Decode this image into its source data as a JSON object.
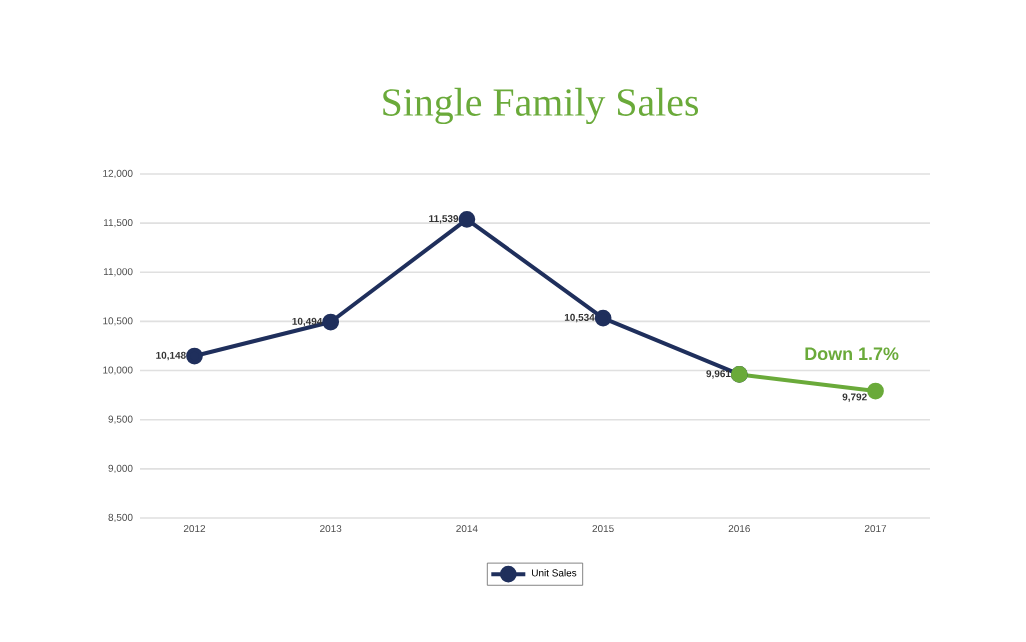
{
  "chart_data": {
    "type": "line",
    "title": "Single Family Sales",
    "categories": [
      "2012",
      "2013",
      "2014",
      "2015",
      "2016",
      "2017"
    ],
    "series": [
      {
        "name": "Unit Sales",
        "color": "#1f2f5c",
        "values": [
          10148,
          10494,
          11539,
          10534,
          9961,
          null
        ],
        "value_labels": [
          "10,148",
          "10,494",
          "11,539",
          "10,534",
          "9,961",
          null
        ]
      },
      {
        "color": "#6aaa3a",
        "values": [
          null,
          null,
          null,
          null,
          9961,
          9792
        ],
        "value_labels": [
          null,
          null,
          null,
          null,
          null,
          "9,792"
        ]
      }
    ],
    "ylim": [
      8500,
      12000
    ],
    "yticks": [
      {
        "value": 8500,
        "label": "8,500"
      },
      {
        "value": 9000,
        "label": "9,000"
      },
      {
        "value": 9500,
        "label": "9,500"
      },
      {
        "value": 10000,
        "label": "10,000"
      },
      {
        "value": 10500,
        "label": "10,500"
      },
      {
        "value": 11000,
        "label": "11,000"
      },
      {
        "value": 11500,
        "label": "11,500"
      },
      {
        "value": 12000,
        "label": "12,000"
      }
    ],
    "annotations": [
      "Down 1.7%"
    ],
    "grid": "y",
    "legend": "bottom",
    "marker": "circle",
    "line_style": "solid"
  }
}
